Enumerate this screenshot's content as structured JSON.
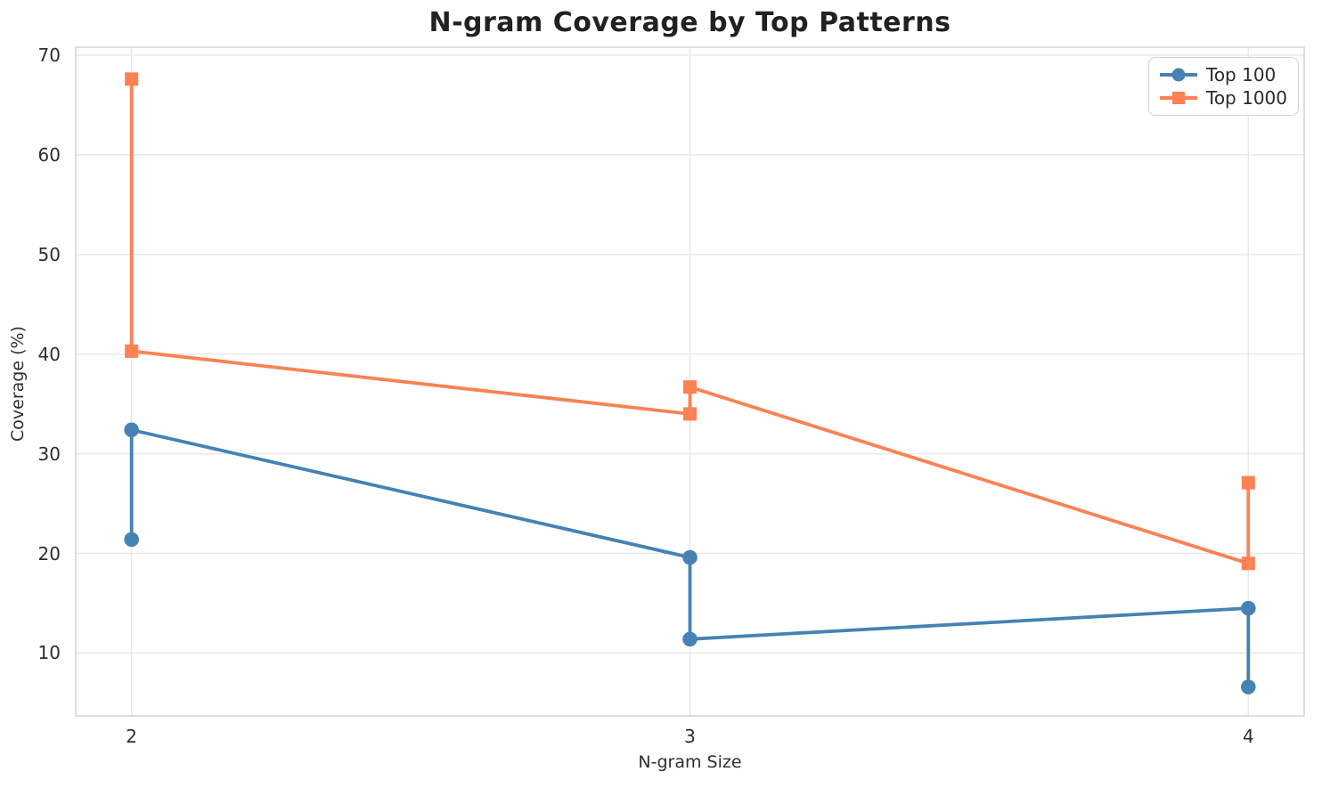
{
  "figure": {
    "background_color": "#ffffff",
    "grid_color": "#e8e8e8",
    "spine_color": "#d6d6d6",
    "text_color": "#2e2e2e",
    "title_color": "#212121"
  },
  "chart_data": {
    "type": "line",
    "title": "N-gram Coverage by Top Patterns",
    "xlabel": "N-gram Size",
    "ylabel": "Coverage (%)",
    "xlim": [
      1.9,
      4.1
    ],
    "ylim": [
      3.7,
      70.8
    ],
    "x_ticks": [
      2,
      3,
      4
    ],
    "y_ticks": [
      10,
      20,
      30,
      40,
      50,
      60,
      70
    ],
    "grid": true,
    "legend_position": "upper right",
    "series": [
      {
        "name": "Top 100",
        "color": "#4682b4",
        "marker": "circle",
        "line_width": 3.8,
        "points": [
          [
            2,
            21.4
          ],
          [
            2,
            32.4
          ],
          [
            3,
            19.6
          ],
          [
            3,
            11.4
          ],
          [
            4,
            14.5
          ],
          [
            4,
            6.6
          ]
        ]
      },
      {
        "name": "Top 1000",
        "color": "#fc8153",
        "marker": "square",
        "line_width": 3.8,
        "points": [
          [
            2,
            67.6
          ],
          [
            2,
            40.3
          ],
          [
            3,
            34.0
          ],
          [
            3,
            36.7
          ],
          [
            4,
            19.0
          ],
          [
            4,
            27.1
          ]
        ]
      }
    ]
  }
}
